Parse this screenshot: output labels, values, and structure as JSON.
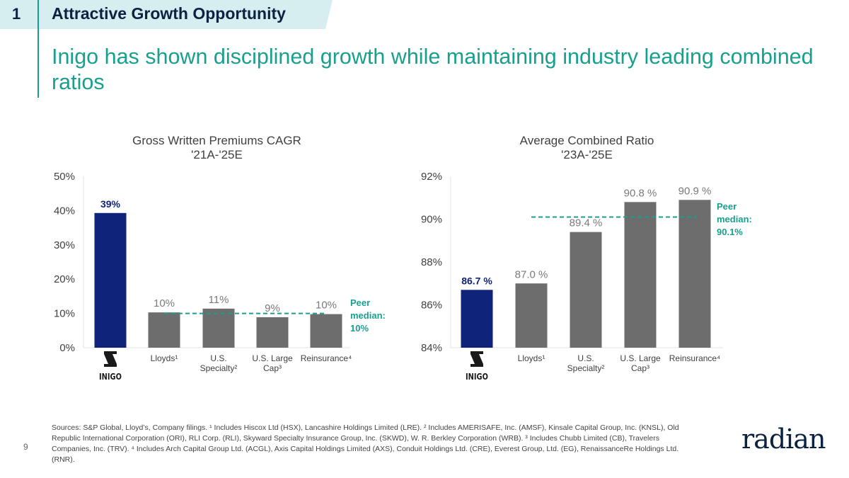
{
  "header": {
    "section_number": "1",
    "section_title": "Attractive Growth Opportunity"
  },
  "subtitle": "Inigo has shown disciplined growth while maintaining industry leading combined ratios",
  "colors": {
    "inigo": "#10237a",
    "peer": "#6d6d6d",
    "median": "#18a08f",
    "accent": "#18a08f",
    "navy": "#0b2341"
  },
  "chart_data": [
    {
      "type": "bar",
      "title": [
        "Gross Written Premiums CAGR",
        "'21A-'25E"
      ],
      "categories": [
        "INIGO",
        "Lloyds¹",
        "U.S. Specialty²",
        "U.S. Large Cap³",
        "Reinsurance⁴"
      ],
      "category_lines": [
        [
          "INIGO"
        ],
        [
          "Lloyds¹"
        ],
        [
          "U.S.",
          "Specialty²"
        ],
        [
          "U.S. Large",
          "Cap³"
        ],
        [
          "Reinsurance⁴"
        ]
      ],
      "values": [
        39.3,
        10.3,
        11.4,
        8.9,
        9.8
      ],
      "data_labels": [
        "39%",
        "10%",
        "11%",
        "9%",
        "10%"
      ],
      "ylim": [
        0,
        50
      ],
      "yticks": [
        "0%",
        "10%",
        "20%",
        "30%",
        "40%",
        "50%"
      ],
      "peer_median": {
        "value": 10,
        "label": [
          "Peer",
          "median:",
          "10%"
        ]
      },
      "grid": false
    },
    {
      "type": "bar",
      "title": [
        "Average Combined Ratio",
        "'23A-'25E"
      ],
      "categories": [
        "INIGO",
        "Lloyds¹",
        "U.S. Specialty²",
        "U.S. Large Cap³",
        "Reinsurance⁴"
      ],
      "category_lines": [
        [
          "INIGO"
        ],
        [
          "Lloyds¹"
        ],
        [
          "U.S.",
          "Specialty²"
        ],
        [
          "U.S. Large",
          "Cap³"
        ],
        [
          "Reinsurance⁴"
        ]
      ],
      "values": [
        86.7,
        87.0,
        89.4,
        90.8,
        90.9
      ],
      "data_labels": [
        "86.7 %",
        "87.0 %",
        "89.4 %",
        "90.8 %",
        "90.9 %"
      ],
      "ylim": [
        84,
        92
      ],
      "yticks": [
        "84%",
        "86%",
        "88%",
        "90%",
        "92%"
      ],
      "peer_median": {
        "value": 90.1,
        "label": [
          "Peer",
          "median:",
          "90.1%"
        ]
      },
      "grid": false
    }
  ],
  "footer": {
    "page_number": "9",
    "sources": "Sources: S&P Global, Lloyd’s, Company filings. ¹ Includes Hiscox Ltd (HSX), Lancashire Holdings Limited (LRE). ² Includes AMERISAFE, Inc. (AMSF), Kinsale Capital Group, Inc. (KNSL), Old Republic International Corporation (ORI), RLI Corp. (RLI), Skyward Specialty Insurance Group, Inc. (SKWD), W. R. Berkley Corporation (WRB). ³ Includes Chubb Limited (CB), Travelers Companies, Inc. (TRV). ⁴ Includes Arch Capital Group Ltd. (ACGL), Axis Capital Holdings Limited (AXS), Conduit Holdings Ltd. (CRE), Everest Group, Ltd. (EG), RenaissanceRe Holdings Ltd. (RNR).",
    "logo_text": "radian"
  }
}
